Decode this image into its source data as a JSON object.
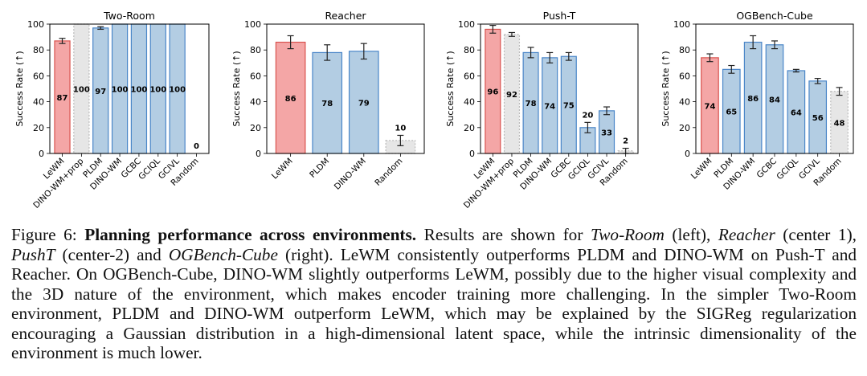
{
  "colors": {
    "highlight_fill": "#f4a6a6",
    "highlight_edge": "#d9534f",
    "method_fill": "#b3cde3",
    "method_edge": "#4a86c8",
    "random_fill": "#e6e6e6",
    "random_edge": "#bbbbbb",
    "error_bar": "#222222"
  },
  "chart_data": [
    {
      "type": "bar",
      "title": "Two-Room",
      "ylabel": "Success Rate (↑)",
      "ylim": [
        0,
        100
      ],
      "yticks": [
        "0",
        "20",
        "40",
        "60",
        "80",
        "100"
      ],
      "categories": [
        "LeWM",
        "DINO-WM+prop",
        "PLDM",
        "DINO-WM",
        "GCBC",
        "GCIQL",
        "GCIVL",
        "Random"
      ],
      "values": [
        87,
        100,
        97,
        100,
        100,
        100,
        100,
        0
      ],
      "value_labels": [
        "87",
        "100",
        "97",
        "100",
        "100",
        "100",
        "100",
        "0"
      ],
      "errors": [
        2,
        0,
        1,
        0,
        0,
        0,
        0,
        0
      ],
      "styles": [
        "highlight",
        "random",
        "method",
        "method",
        "method",
        "method",
        "method",
        "random"
      ],
      "rotate_labels": true
    },
    {
      "type": "bar",
      "title": "Reacher",
      "ylabel": "Success Rate (↑)",
      "ylim": [
        0,
        100
      ],
      "yticks": [
        "0",
        "20",
        "40",
        "60",
        "80",
        "100"
      ],
      "categories": [
        "LeWM",
        "PLDM",
        "DINO-WM",
        "Random"
      ],
      "values": [
        86,
        78,
        79,
        10
      ],
      "value_labels": [
        "86",
        "78",
        "79",
        "10"
      ],
      "errors": [
        5,
        6,
        6,
        4
      ],
      "styles": [
        "highlight",
        "method",
        "method",
        "random"
      ],
      "rotate_labels": true
    },
    {
      "type": "bar",
      "title": "Push-T",
      "ylabel": "Success Rate (↑)",
      "ylim": [
        0,
        100
      ],
      "yticks": [
        "0",
        "20",
        "40",
        "60",
        "80",
        "100"
      ],
      "categories": [
        "LeWM",
        "DINO-WM+prop",
        "PLDM",
        "DINO-WM",
        "GCBC",
        "GCIQL",
        "GCIVL",
        "Random"
      ],
      "values": [
        96,
        92,
        78,
        74,
        75,
        20,
        33,
        2
      ],
      "value_labels": [
        "96",
        "92",
        "78",
        "74",
        "75",
        "20",
        "33",
        "2"
      ],
      "errors": [
        3,
        1.5,
        4,
        4,
        3,
        4,
        3,
        2
      ],
      "styles": [
        "highlight",
        "random",
        "method",
        "method",
        "method",
        "method",
        "method",
        "random"
      ],
      "rotate_labels": true
    },
    {
      "type": "bar",
      "title": "OGBench-Cube",
      "ylabel": "Success Rate (↑)",
      "ylim": [
        0,
        100
      ],
      "yticks": [
        "0",
        "20",
        "40",
        "60",
        "80",
        "100"
      ],
      "categories": [
        "LeWM",
        "PLDM",
        "DINO-WM",
        "GCBC",
        "GCIQL",
        "GCIVL",
        "Random"
      ],
      "values": [
        74,
        65,
        86,
        84,
        64,
        56,
        48
      ],
      "value_labels": [
        "74",
        "65",
        "86",
        "84",
        "64",
        "56",
        "48"
      ],
      "errors": [
        3,
        3,
        5,
        3,
        1,
        2,
        3
      ],
      "styles": [
        "highlight",
        "method",
        "method",
        "method",
        "method",
        "method",
        "random"
      ],
      "rotate_labels": true
    }
  ],
  "caption": {
    "label": "Figure 6:",
    "bold": "Planning performance across environments.",
    "parts": [
      {
        "t": " Results are shown for ",
        "i": false
      },
      {
        "t": "Two-Room",
        "i": true
      },
      {
        "t": " (left), ",
        "i": false
      },
      {
        "t": "Reacher",
        "i": true
      },
      {
        "t": " (center 1), ",
        "i": false
      },
      {
        "t": "PushT",
        "i": true
      },
      {
        "t": " (center-2) and ",
        "i": false
      },
      {
        "t": "OGBench-Cube",
        "i": true
      },
      {
        "t": " (right). LeWM consistently outperforms PLDM and DINO-WM on Push-T and Reacher. On OGBench-Cube, DINO-WM slightly outperforms LeWM, possibly due to the higher visual complexity and the 3D nature of the environment, which makes encoder training more challenging. In the simpler Two-Room environment, PLDM and DINO-WM outperform LeWM, which may be explained by the SIGReg regularization encouraging a Gaussian distribution in a high-dimensional latent space, while the intrinsic dimensionality of the environment is much lower.",
        "i": false
      }
    ]
  }
}
